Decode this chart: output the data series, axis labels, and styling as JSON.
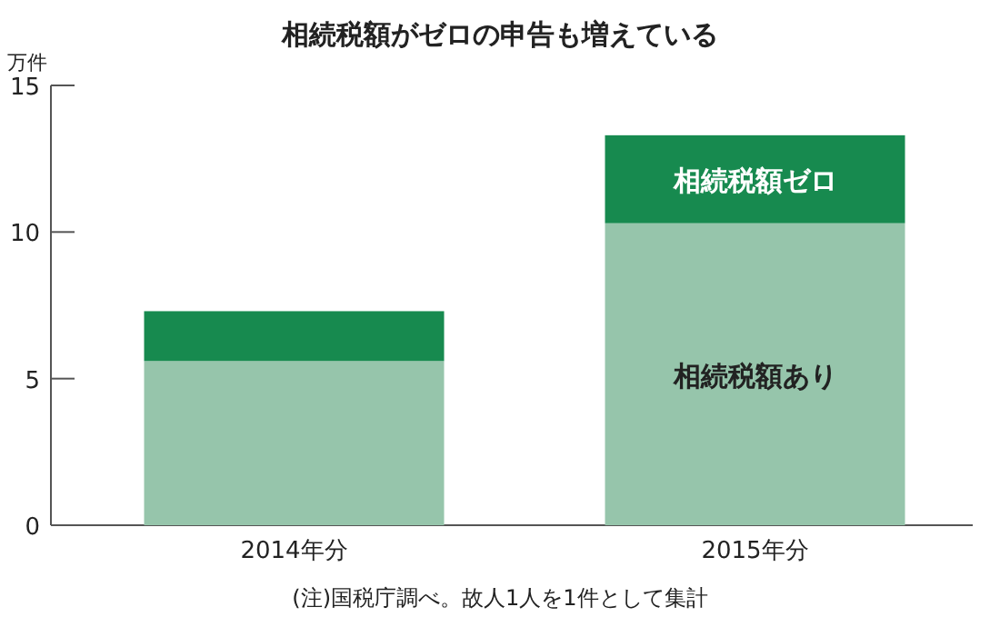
{
  "chart_data": {
    "type": "bar",
    "stacked": true,
    "title": "相続税額がゼロの申告も増えている",
    "ylabel": "万件",
    "categories": [
      "2014年分",
      "2015年分"
    ],
    "series": [
      {
        "name": "相続税額あり",
        "color": "#96c5ab",
        "values": [
          5.6,
          10.3
        ]
      },
      {
        "name": "相続税額ゼロ",
        "color": "#178a4f",
        "values": [
          1.7,
          3.0
        ]
      }
    ],
    "ylim": [
      0,
      15
    ],
    "yticks": [
      0,
      5,
      10,
      15
    ],
    "annotations": [
      "(注)国税庁調べ。故人1人を1件として集計"
    ]
  }
}
